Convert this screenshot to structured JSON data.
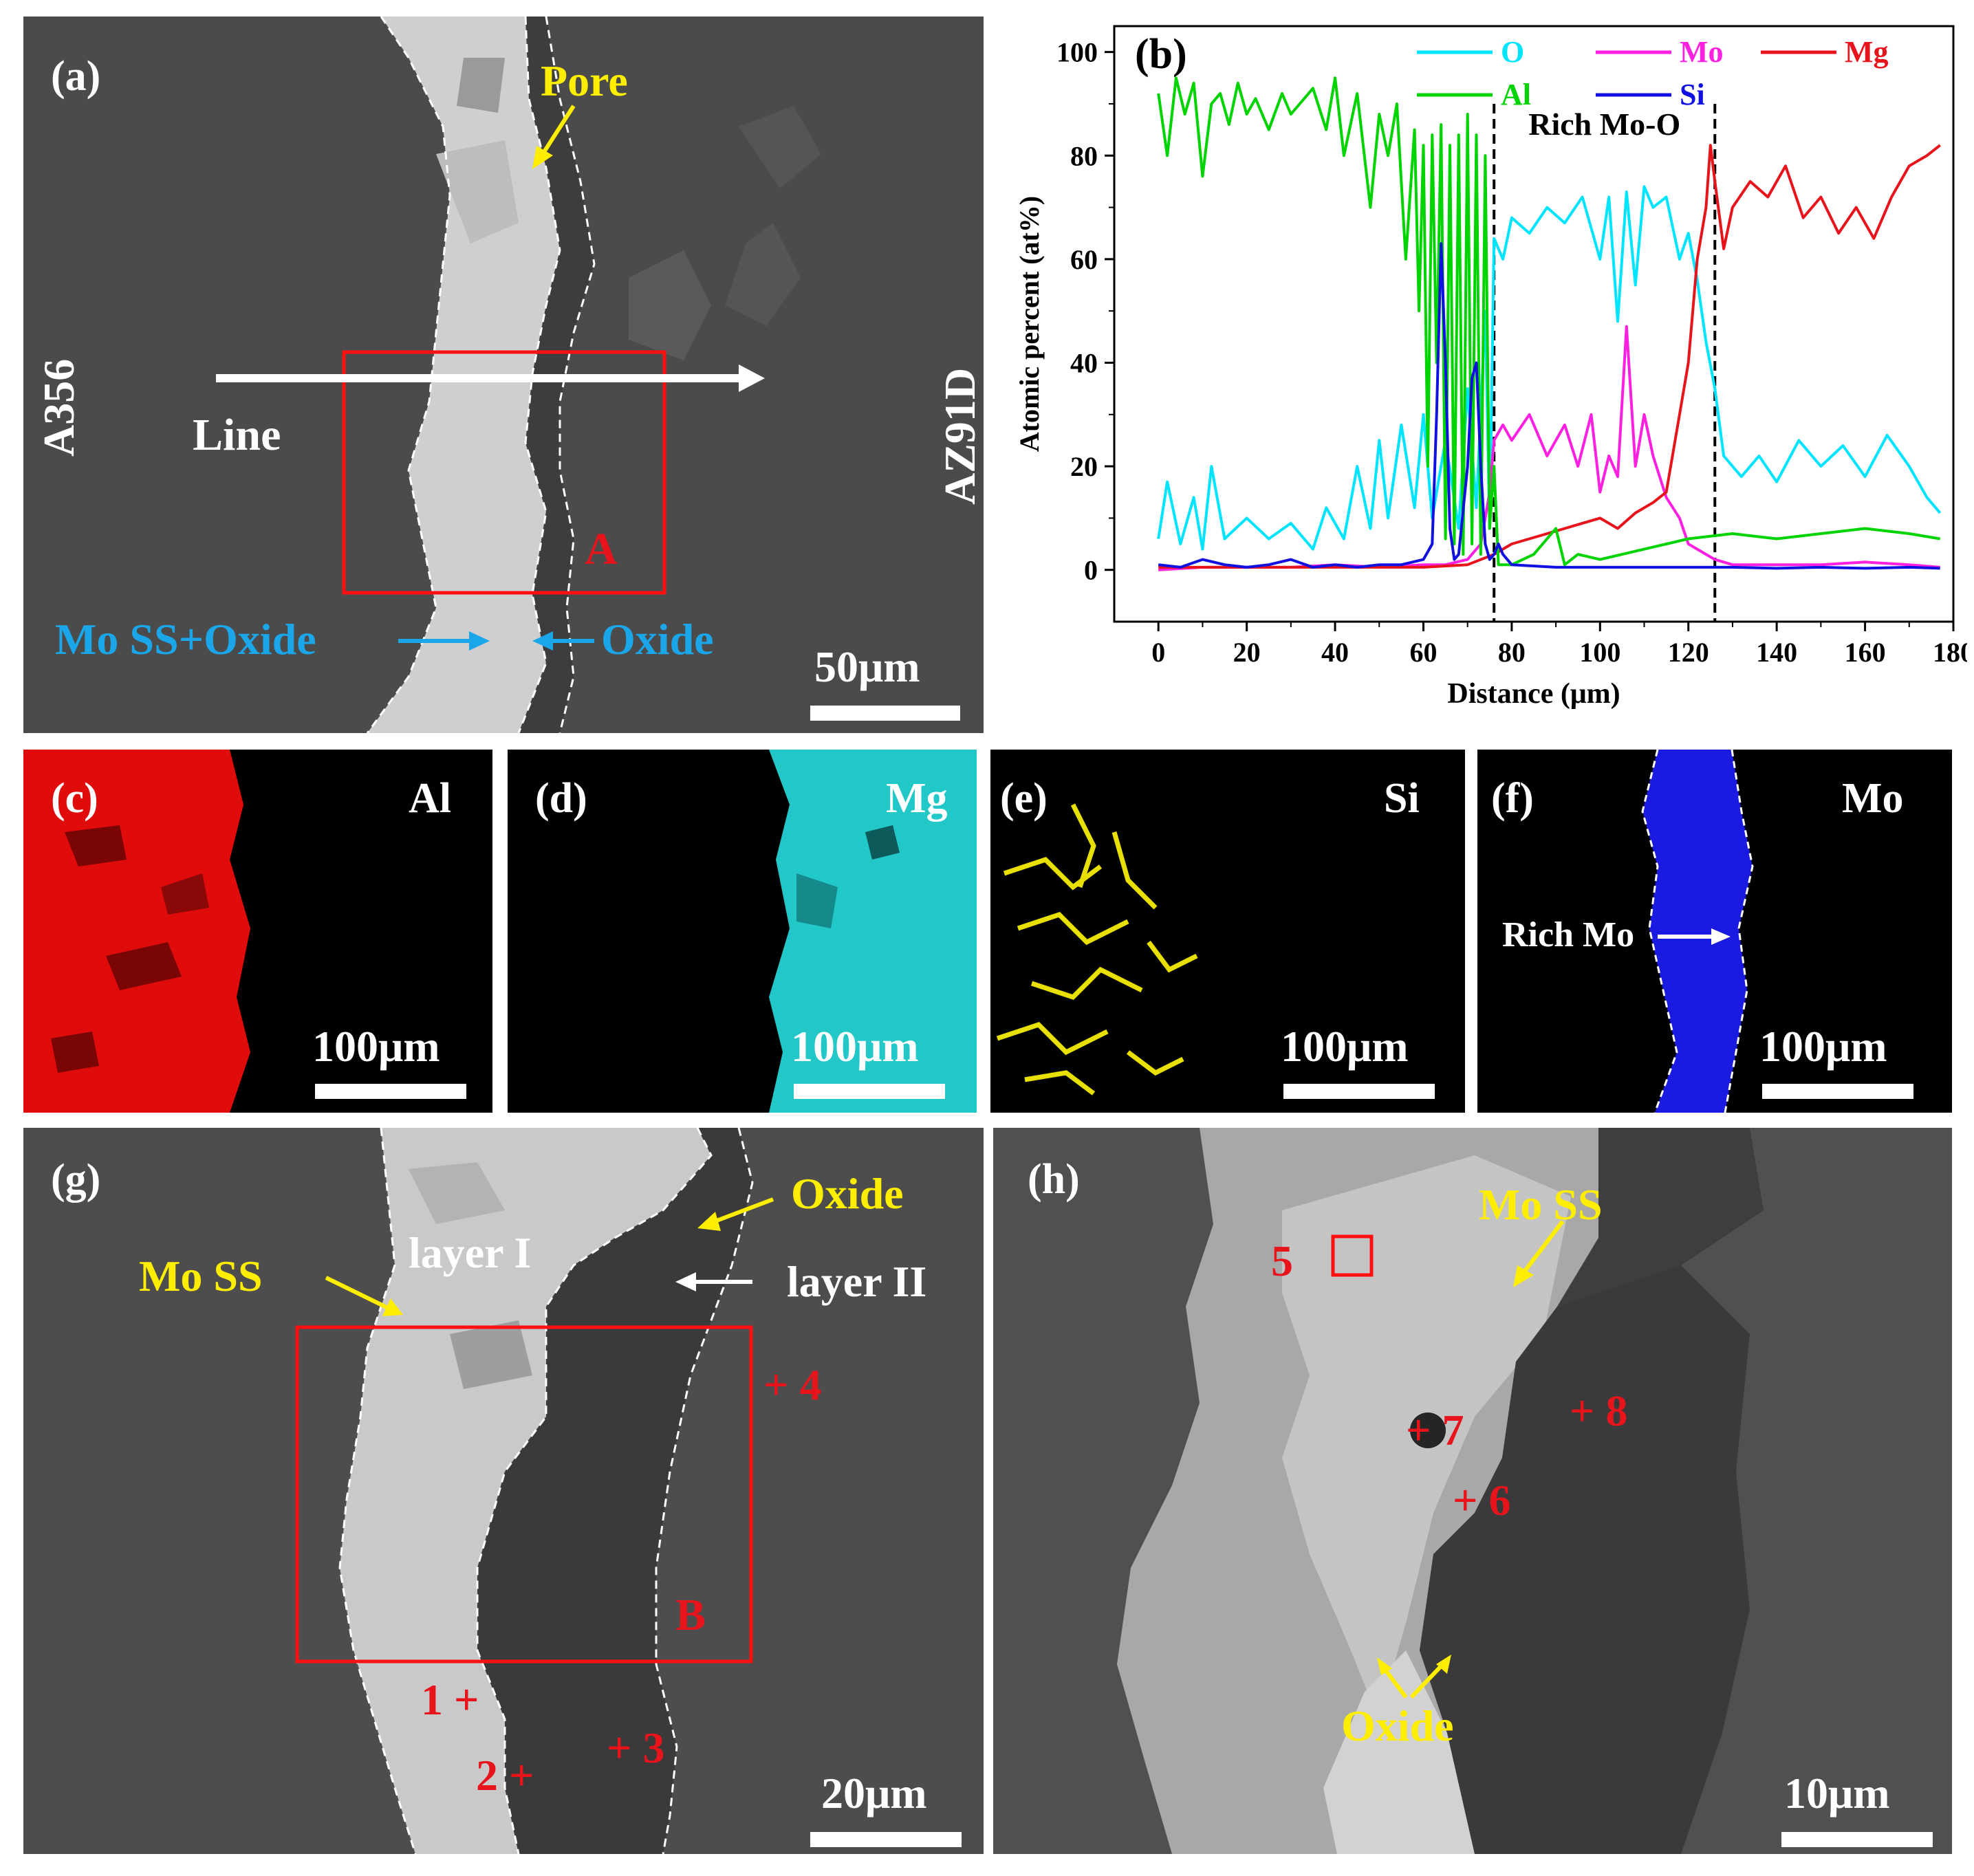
{
  "panels": {
    "a": {
      "label": "(a)",
      "side_left": "A356",
      "side_right": "AZ91D",
      "pore": "Pore",
      "line": "Line",
      "box": "A",
      "mo_ss_oxide": "Mo SS+Oxide",
      "oxide": "Oxide",
      "scale": "50μm"
    },
    "b": {
      "label": "(b)"
    },
    "c": {
      "label": "(c)",
      "element": "Al",
      "scale": "100μm"
    },
    "d": {
      "label": "(d)",
      "element": "Mg",
      "scale": "100μm"
    },
    "e": {
      "label": "(e)",
      "element": "Si",
      "scale": "100μm"
    },
    "f": {
      "label": "(f)",
      "element": "Mo",
      "rich": "Rich Mo",
      "scale": "100μm"
    },
    "g": {
      "label": "(g)",
      "oxide": "Oxide",
      "mo_ss": "Mo SS",
      "layer1": "layer I",
      "layer2": "layer II",
      "box": "B",
      "points": [
        "1",
        "2",
        "3",
        "4"
      ],
      "scale": "20μm"
    },
    "h": {
      "label": "(h)",
      "mo_ss": "Mo SS",
      "oxide": "Oxide",
      "points": [
        "5",
        "6",
        "7",
        "8"
      ],
      "scale": "10μm"
    }
  },
  "chart_data": {
    "type": "line",
    "xlabel": "Distance (μm)",
    "ylabel": "Atomic percent (at%)",
    "xlim": [
      -10,
      180
    ],
    "ylim": [
      -10,
      105
    ],
    "xticks": [
      0,
      20,
      40,
      60,
      80,
      100,
      120,
      140,
      160,
      180
    ],
    "yticks": [
      0,
      20,
      40,
      60,
      80,
      100
    ],
    "annotation": "Rich Mo-O",
    "region_x": [
      76,
      126
    ],
    "legend_position": "top",
    "series": [
      {
        "name": "O",
        "color": "#00e5ff",
        "x": [
          0,
          2,
          5,
          8,
          10,
          12,
          15,
          20,
          25,
          30,
          35,
          38,
          42,
          45,
          48,
          50,
          52,
          55,
          58,
          60,
          62,
          65,
          68,
          70,
          72,
          74,
          75,
          76,
          78,
          80,
          84,
          88,
          92,
          96,
          100,
          102,
          104,
          106,
          108,
          110,
          112,
          115,
          118,
          120,
          122,
          124,
          126,
          128,
          132,
          136,
          140,
          145,
          150,
          155,
          160,
          165,
          170,
          174,
          177
        ],
        "y": [
          6,
          17,
          5,
          14,
          4,
          20,
          6,
          10,
          6,
          9,
          4,
          12,
          6,
          20,
          8,
          25,
          10,
          28,
          12,
          30,
          10,
          25,
          8,
          35,
          12,
          50,
          8,
          64,
          60,
          68,
          65,
          70,
          67,
          72,
          60,
          72,
          48,
          73,
          55,
          74,
          70,
          72,
          60,
          65,
          56,
          44,
          35,
          22,
          18,
          22,
          17,
          25,
          20,
          24,
          18,
          26,
          20,
          14,
          11
        ]
      },
      {
        "name": "Mo",
        "color": "#ff1fe0",
        "x": [
          0,
          10,
          20,
          30,
          40,
          50,
          60,
          65,
          70,
          73,
          75,
          76,
          78,
          80,
          84,
          88,
          92,
          95,
          98,
          100,
          102,
          104,
          106,
          108,
          110,
          112,
          115,
          118,
          120,
          124,
          126,
          130,
          140,
          150,
          160,
          170,
          177
        ],
        "y": [
          0,
          0.5,
          0.5,
          0.5,
          1,
          0.5,
          1,
          1,
          2,
          5,
          15,
          25,
          28,
          25,
          30,
          22,
          28,
          20,
          30,
          15,
          22,
          18,
          47,
          20,
          30,
          22,
          14,
          10,
          5,
          3,
          2,
          1,
          1,
          1,
          1.5,
          1,
          0.5
        ]
      },
      {
        "name": "Mg",
        "color": "#e8141c",
        "x": [
          0,
          20,
          40,
          60,
          70,
          76,
          80,
          84,
          88,
          92,
          96,
          100,
          104,
          108,
          112,
          115,
          118,
          120,
          122,
          124,
          125,
          126,
          128,
          130,
          134,
          138,
          142,
          146,
          150,
          154,
          158,
          162,
          166,
          170,
          174,
          177
        ],
        "y": [
          0.5,
          0.5,
          0.5,
          0.5,
          1,
          3,
          5,
          6,
          7,
          8,
          9,
          10,
          8,
          11,
          13,
          15,
          30,
          40,
          60,
          70,
          82,
          75,
          62,
          70,
          75,
          72,
          78,
          68,
          72,
          65,
          70,
          64,
          72,
          78,
          80,
          82
        ]
      },
      {
        "name": "Al",
        "color": "#00d400",
        "x": [
          0,
          2,
          4,
          6,
          8,
          10,
          12,
          14,
          16,
          18,
          20,
          22,
          25,
          28,
          30,
          32,
          35,
          38,
          40,
          42,
          45,
          48,
          50,
          52,
          54,
          56,
          58,
          59,
          60,
          61,
          62,
          63,
          64,
          65,
          66,
          67,
          68,
          69,
          70,
          71,
          72,
          73,
          74,
          75,
          76,
          77,
          78,
          80,
          85,
          90,
          92,
          95,
          100,
          110,
          120,
          130,
          140,
          150,
          160,
          170,
          177
        ],
        "y": [
          92,
          80,
          95,
          88,
          94,
          76,
          90,
          92,
          86,
          94,
          88,
          91,
          85,
          92,
          88,
          90,
          93,
          85,
          95,
          80,
          92,
          70,
          88,
          80,
          90,
          60,
          85,
          50,
          82,
          20,
          84,
          40,
          86,
          6,
          82,
          5,
          84,
          3,
          88,
          5,
          84,
          3,
          80,
          8,
          20,
          1,
          1,
          1,
          3,
          8,
          1,
          3,
          2,
          4,
          6,
          7,
          6,
          7,
          8,
          7,
          6
        ]
      },
      {
        "name": "Si",
        "color": "#1010e0",
        "x": [
          0,
          5,
          10,
          15,
          20,
          25,
          30,
          35,
          40,
          45,
          50,
          55,
          60,
          62,
          63,
          64,
          65,
          66,
          67,
          68,
          70,
          71,
          72,
          73,
          74,
          75,
          76,
          77,
          78,
          80,
          90,
          100,
          110,
          120,
          130,
          140,
          150,
          160,
          170,
          177
        ],
        "y": [
          1,
          0.5,
          2,
          1,
          0.5,
          1,
          2,
          0.5,
          1,
          0.5,
          1,
          1,
          2,
          5,
          30,
          63,
          40,
          8,
          2,
          3,
          20,
          37,
          40,
          20,
          5,
          2,
          3,
          5,
          3,
          1,
          0.5,
          0.5,
          0.5,
          0.5,
          0.5,
          0.3,
          0.5,
          0.3,
          0.5,
          0.3
        ]
      }
    ]
  }
}
